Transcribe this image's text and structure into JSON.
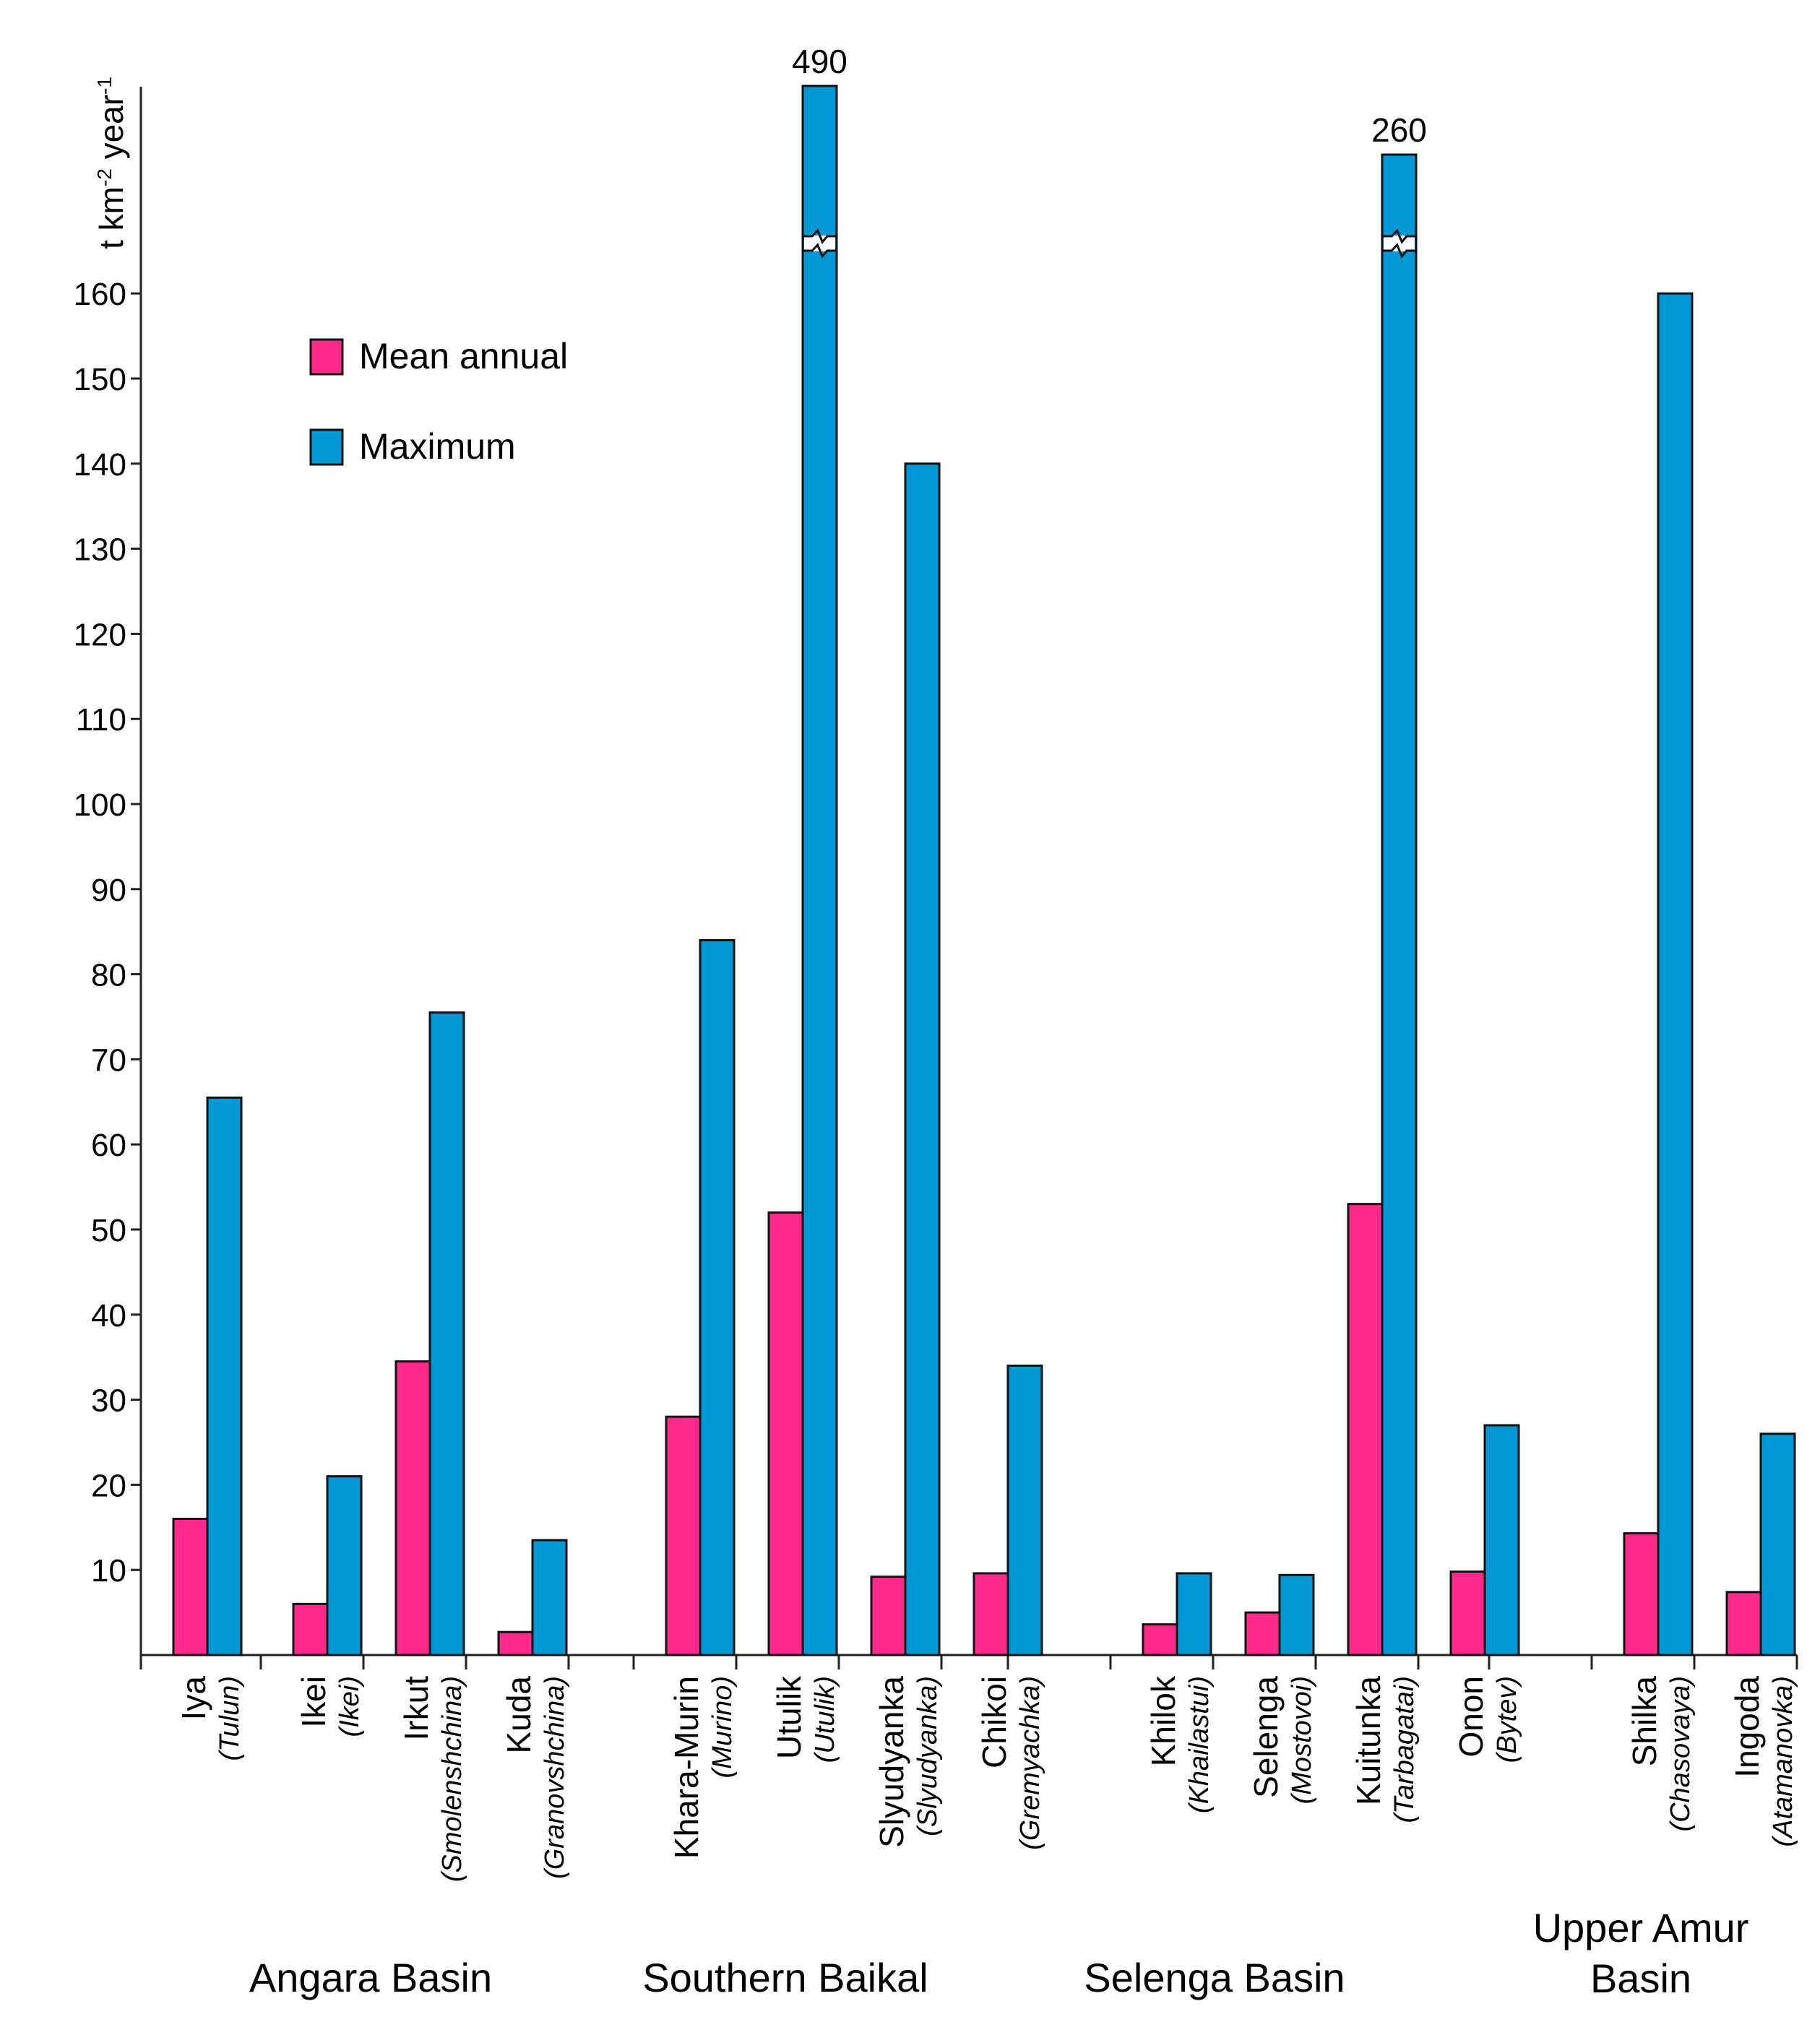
{
  "chart_data": {
    "type": "bar",
    "ylabel": "t km",
    "ylabel_sup1": "-2",
    "ylabel_mid": " year",
    "ylabel_sup2": "-1",
    "ylim": [
      0,
      180
    ],
    "yticks": [
      10,
      20,
      30,
      40,
      50,
      60,
      70,
      80,
      90,
      100,
      110,
      120,
      130,
      140,
      150,
      160
    ],
    "legend_position": "top-left",
    "series": [
      {
        "name": "Mean annual",
        "color": "#ff2a8c"
      },
      {
        "name": "Maximum",
        "color": "#0099d6"
      }
    ],
    "groups": [
      {
        "name_lines": [
          "Angara Basin"
        ],
        "rivers": [
          {
            "name": "Iya",
            "station": "(Tulun)",
            "mean": 16,
            "max": 65.5
          },
          {
            "name": "Ikei",
            "station": "(Ikei)",
            "mean": 6,
            "max": 21
          },
          {
            "name": "Irkut",
            "station": "(Smolenshchina)",
            "mean": 34.5,
            "max": 75.5
          },
          {
            "name": "Kuda",
            "station": "(Granovshchina)",
            "mean": 2.7,
            "max": 13.5
          }
        ]
      },
      {
        "name_lines": [
          "Southern Baikal"
        ],
        "rivers": [
          {
            "name": "Khara-Murin",
            "station": "(Murino)",
            "mean": 28,
            "max": 84
          },
          {
            "name": "Utulik",
            "station": "(Utulik)",
            "mean": 52,
            "max": 490,
            "break_label": "490"
          },
          {
            "name": "Slyudyanka",
            "station": "(Slyudyanka)",
            "mean": 9.2,
            "max": 140
          }
        ]
      },
      {
        "name_lines": [
          "Selenga Basin"
        ],
        "rivers": [
          {
            "name": "Chikoi",
            "station": "(Gremyachka)",
            "mean": 9.6,
            "max": 34
          },
          {
            "name": "Khilok",
            "station": "(Khailastui)",
            "mean": 3.6,
            "max": 9.6
          },
          {
            "name": "Selenga",
            "station": "(Mostovoi)",
            "mean": 5,
            "max": 9.4
          },
          {
            "name": "Kuitunka",
            "station": "(Tarbagatai)",
            "mean": 53,
            "max": 260,
            "break_label": "260"
          }
        ]
      },
      {
        "name_lines": [
          "Upper Amur",
          "Basin"
        ],
        "rivers": [
          {
            "name": "Onon",
            "station": "(Bytev)",
            "mean": 9.8,
            "max": 27
          },
          {
            "name": "Shilka",
            "station": "(Chasovaya)",
            "mean": 14.3,
            "max": 160
          },
          {
            "name": "Ingoda",
            "station": "(Atamanovka)",
            "mean": 7.4,
            "max": 26
          }
        ]
      }
    ]
  }
}
